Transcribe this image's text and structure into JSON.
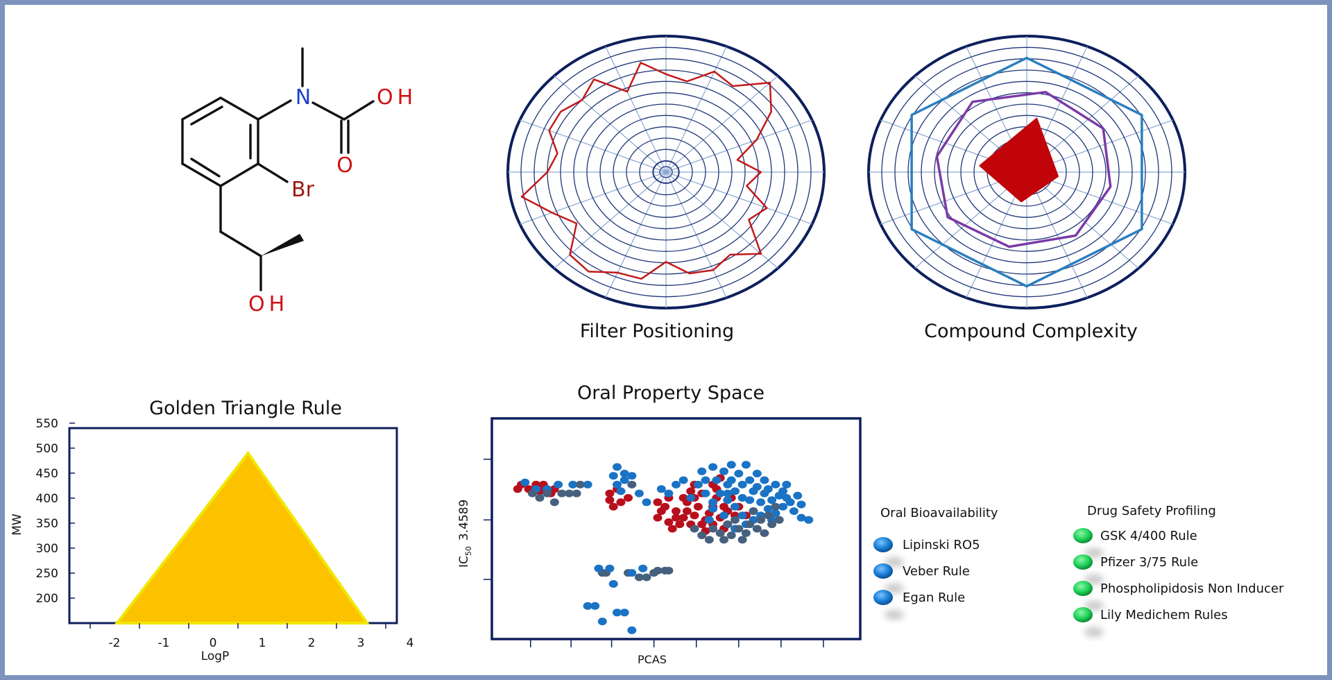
{
  "molecule": {
    "atom_labels": {
      "nitrogen": "N",
      "hydroxyl_top": "OH",
      "carbonyl_oxygen": "O",
      "bromine": "Br",
      "hydroxyl_bottom": "OH"
    },
    "colors": {
      "bond": "#111111",
      "nitrogen": "#1f3fcf",
      "oxygen": "#d10f12",
      "bromine": "#9a1a12"
    }
  },
  "captions": {
    "filter": "Filter Positioning",
    "complexity": "Compound Complexity"
  },
  "chart_data": [
    {
      "type": "radar",
      "name": "filter-positioning",
      "title": "Filter Positioning",
      "rings": 12,
      "spokes": 16,
      "colors": {
        "outline": "#0d1f5c",
        "grid": "#8aa6cf",
        "ring": "#1e3578",
        "series": "#c21a1a"
      },
      "series": [
        {
          "values": [
            0.72,
            0.68,
            0.8,
            0.76,
            0.93,
            0.8,
            0.62,
            0.46,
            0.6,
            0.52,
            0.69,
            0.63,
            0.85,
            0.73,
            0.78,
            0.76,
            0.66,
            0.8,
            0.8,
            0.88,
            0.86,
            0.68,
            0.78,
            0.93,
            0.75,
            0.7,
            0.8,
            0.8,
            0.75,
            0.82,
            0.64,
            0.82
          ]
        }
      ]
    },
    {
      "type": "radar",
      "name": "compound-complexity",
      "title": "Compound Complexity",
      "rings": 12,
      "spokes": 16,
      "colors": {
        "outline": "#0d1f5c",
        "grid": "#8aa6cf",
        "ring": "#1e3578",
        "outer": "#2a7fc0",
        "middle": "#7a3aa6",
        "inner": "#c0040a"
      },
      "series": [
        {
          "values": [
            0.84,
            0.84,
            0.84,
            0.84,
            0.84,
            0.84
          ]
        },
        {
          "values": [
            0.6,
            0.58,
            0.54,
            0.56,
            0.56,
            0.6,
            0.58,
            0.62
          ]
        },
        {
          "values": [
            0.3,
            0.4,
            0.2,
            0.22
          ]
        }
      ]
    },
    {
      "type": "area",
      "name": "golden-triangle",
      "title": "Golden Triangle Rule",
      "xlabel": "LogP",
      "ylabel": "MW",
      "x_ticks": [
        "-2",
        "-1",
        "0",
        "1",
        "2",
        "3",
        "4"
      ],
      "y_ticks": [
        "550",
        "500",
        "450",
        "400",
        "350",
        "300",
        "250",
        "200"
      ],
      "xlim": [
        -2.5,
        3.0
      ],
      "ylim": [
        150,
        540
      ],
      "vertices": [
        [
          -1.7,
          150
        ],
        [
          0.5,
          490
        ],
        [
          2.5,
          150
        ]
      ],
      "colors": {
        "fill": "#fcc200",
        "edge": "#f0e800",
        "frame": "#0d1f5c"
      }
    },
    {
      "type": "scatter",
      "name": "oral-property-space",
      "title": "Oral Property Space",
      "xlabel": "PCAS",
      "ylabel_main": "IC",
      "ylabel_sub": "50",
      "ylabel_value": "3.4589",
      "xlim": [
        0,
        100
      ],
      "ylim": [
        0,
        100
      ],
      "colors": {
        "frame": "#0d1f5c",
        "red": "#b80f1c",
        "blue": "#1a73c4",
        "slate": "#46607d"
      },
      "series": [
        {
          "name": "red",
          "points": [
            [
              7,
              68
            ],
            [
              8,
              70
            ],
            [
              10,
              68
            ],
            [
              12,
              70
            ],
            [
              13,
              67
            ],
            [
              14,
              70
            ],
            [
              17,
              68
            ],
            [
              16,
              66
            ],
            [
              32,
              66
            ],
            [
              32,
              63
            ],
            [
              33,
              60
            ],
            [
              35,
              62
            ],
            [
              34,
              68
            ],
            [
              37,
              64
            ],
            [
              45,
              62
            ],
            [
              46,
              58
            ],
            [
              45,
              55
            ],
            [
              47,
              60
            ],
            [
              48,
              64
            ],
            [
              50,
              58
            ],
            [
              50,
              55
            ],
            [
              49,
              50
            ],
            [
              51,
              52
            ],
            [
              53,
              58
            ],
            [
              53,
              62
            ],
            [
              54,
              67
            ],
            [
              55,
              64
            ],
            [
              56,
              60
            ],
            [
              55,
              56
            ],
            [
              57,
              52
            ],
            [
              58,
              54
            ],
            [
              58,
              49
            ],
            [
              59,
              57
            ],
            [
              60,
              60
            ],
            [
              61,
              64
            ],
            [
              61,
              68
            ],
            [
              62,
              55
            ],
            [
              63,
              60
            ],
            [
              63,
              50
            ],
            [
              64,
              52
            ],
            [
              64,
              58
            ],
            [
              65,
              64
            ],
            [
              66,
              56
            ],
            [
              67,
              60
            ],
            [
              60,
              70
            ],
            [
              62,
              73
            ],
            [
              55,
              70
            ],
            [
              57,
              66
            ],
            [
              52,
              64
            ],
            [
              52,
              55
            ],
            [
              48,
              53
            ],
            [
              69,
              56
            ],
            [
              54,
              52
            ],
            [
              60,
              52
            ]
          ]
        },
        {
          "name": "blue",
          "points": [
            [
              9,
              71
            ],
            [
              12,
              68
            ],
            [
              15,
              68
            ],
            [
              18,
              70
            ],
            [
              22,
              70
            ],
            [
              26,
              70
            ],
            [
              33,
              74
            ],
            [
              34,
              70
            ],
            [
              35,
              67
            ],
            [
              36,
              72
            ],
            [
              34,
              78
            ],
            [
              36,
              75
            ],
            [
              38,
              74
            ],
            [
              40,
              66
            ],
            [
              42,
              62
            ],
            [
              46,
              68
            ],
            [
              48,
              66
            ],
            [
              50,
              70
            ],
            [
              52,
              72
            ],
            [
              54,
              64
            ],
            [
              56,
              70
            ],
            [
              57,
              76
            ],
            [
              58,
              72
            ],
            [
              58,
              66
            ],
            [
              60,
              78
            ],
            [
              60,
              62
            ],
            [
              61,
              72
            ],
            [
              62,
              66
            ],
            [
              63,
              76
            ],
            [
              63,
              56
            ],
            [
              64,
              70
            ],
            [
              64,
              63
            ],
            [
              65,
              72
            ],
            [
              65,
              79
            ],
            [
              66,
              67
            ],
            [
              66,
              60
            ],
            [
              67,
              75
            ],
            [
              68,
              70
            ],
            [
              68,
              64
            ],
            [
              68,
              56
            ],
            [
              69,
              79
            ],
            [
              70,
              72
            ],
            [
              70,
              63
            ],
            [
              71,
              67
            ],
            [
              71,
              58
            ],
            [
              72,
              75
            ],
            [
              72,
              69
            ],
            [
              73,
              62
            ],
            [
              73,
              56
            ],
            [
              74,
              72
            ],
            [
              74,
              66
            ],
            [
              75,
              59
            ],
            [
              75,
              68
            ],
            [
              76,
              63
            ],
            [
              77,
              70
            ],
            [
              77,
              57
            ],
            [
              78,
              65
            ],
            [
              79,
              60
            ],
            [
              79,
              67
            ],
            [
              80,
              70
            ],
            [
              81,
              62
            ],
            [
              82,
              58
            ],
            [
              83,
              65
            ],
            [
              84,
              61
            ],
            [
              84,
              55
            ],
            [
              86,
              54
            ],
            [
              66,
              50
            ],
            [
              69,
              52
            ],
            [
              76,
              54
            ],
            [
              71,
              54
            ],
            [
              60,
              59
            ],
            [
              59,
              54
            ],
            [
              80,
              64
            ],
            [
              64,
              66
            ]
          ]
        },
        {
          "name": "slate",
          "points": [
            [
              11,
              66
            ],
            [
              13,
              64
            ],
            [
              15,
              66
            ],
            [
              17,
              62
            ],
            [
              19,
              66
            ],
            [
              21,
              66
            ],
            [
              23,
              66
            ],
            [
              24,
              70
            ],
            [
              38,
              70
            ],
            [
              55,
              50
            ],
            [
              57,
              47
            ],
            [
              59,
              45
            ],
            [
              60,
              50
            ],
            [
              62,
              48
            ],
            [
              63,
              45
            ],
            [
              64,
              52
            ],
            [
              65,
              47
            ],
            [
              66,
              54
            ],
            [
              67,
              50
            ],
            [
              68,
              45
            ],
            [
              69,
              48
            ],
            [
              70,
              52
            ],
            [
              71,
              58
            ],
            [
              72,
              50
            ],
            [
              73,
              54
            ],
            [
              74,
              48
            ],
            [
              75,
              56
            ],
            [
              76,
              52
            ],
            [
              77,
              60
            ],
            [
              78,
              54
            ],
            [
              30,
              30
            ],
            [
              31,
              30
            ],
            [
              37,
              30
            ],
            [
              40,
              28
            ],
            [
              42,
              28
            ],
            [
              44,
              30
            ],
            [
              45,
              31
            ],
            [
              47,
              31
            ],
            [
              48,
              31
            ]
          ]
        },
        {
          "name": "blue-low",
          "points": [
            [
              29,
              32
            ],
            [
              32,
              32
            ],
            [
              33,
              25
            ],
            [
              38,
              30
            ],
            [
              41,
              32
            ],
            [
              26,
              15
            ],
            [
              28,
              15
            ],
            [
              30,
              8
            ],
            [
              34,
              12
            ],
            [
              36,
              12
            ],
            [
              38,
              4
            ]
          ]
        }
      ]
    }
  ],
  "legend_oral": {
    "heading": "Oral Bioavailability",
    "items": [
      {
        "label": "Lipinski RO5"
      },
      {
        "label": "Veber Rule"
      },
      {
        "label": "Egan Rule"
      }
    ],
    "color": "#1a7fd6"
  },
  "legend_safety": {
    "heading": "Drug Safety Profiling",
    "items": [
      {
        "label": "GSK 4/400 Rule"
      },
      {
        "label": "Pfizer 3/75 Rule"
      },
      {
        "label": "Phospholipidosis Non Inducer"
      },
      {
        "label": "Lily Medichem Rules"
      }
    ],
    "color": "#1fd25a"
  }
}
